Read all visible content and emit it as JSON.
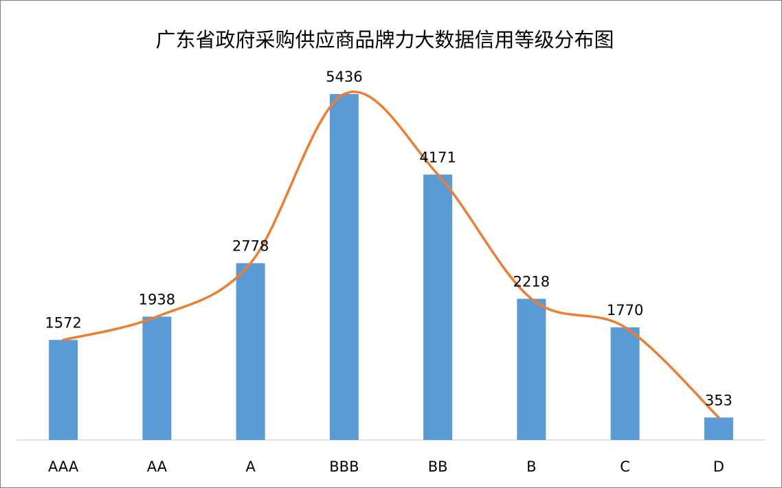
{
  "chart_data": {
    "type": "bar",
    "title": "广东省政府采购供应商品牌力大数据信用等级分布图",
    "categories": [
      "AAA",
      "AA",
      "A",
      "BBB",
      "BB",
      "B",
      "C",
      "D"
    ],
    "values": [
      1572,
      1938,
      2778,
      5436,
      4171,
      2218,
      1770,
      353
    ],
    "color": "#5b9bd5",
    "smooth_line": true,
    "line_color": "#ed7d31"
  }
}
